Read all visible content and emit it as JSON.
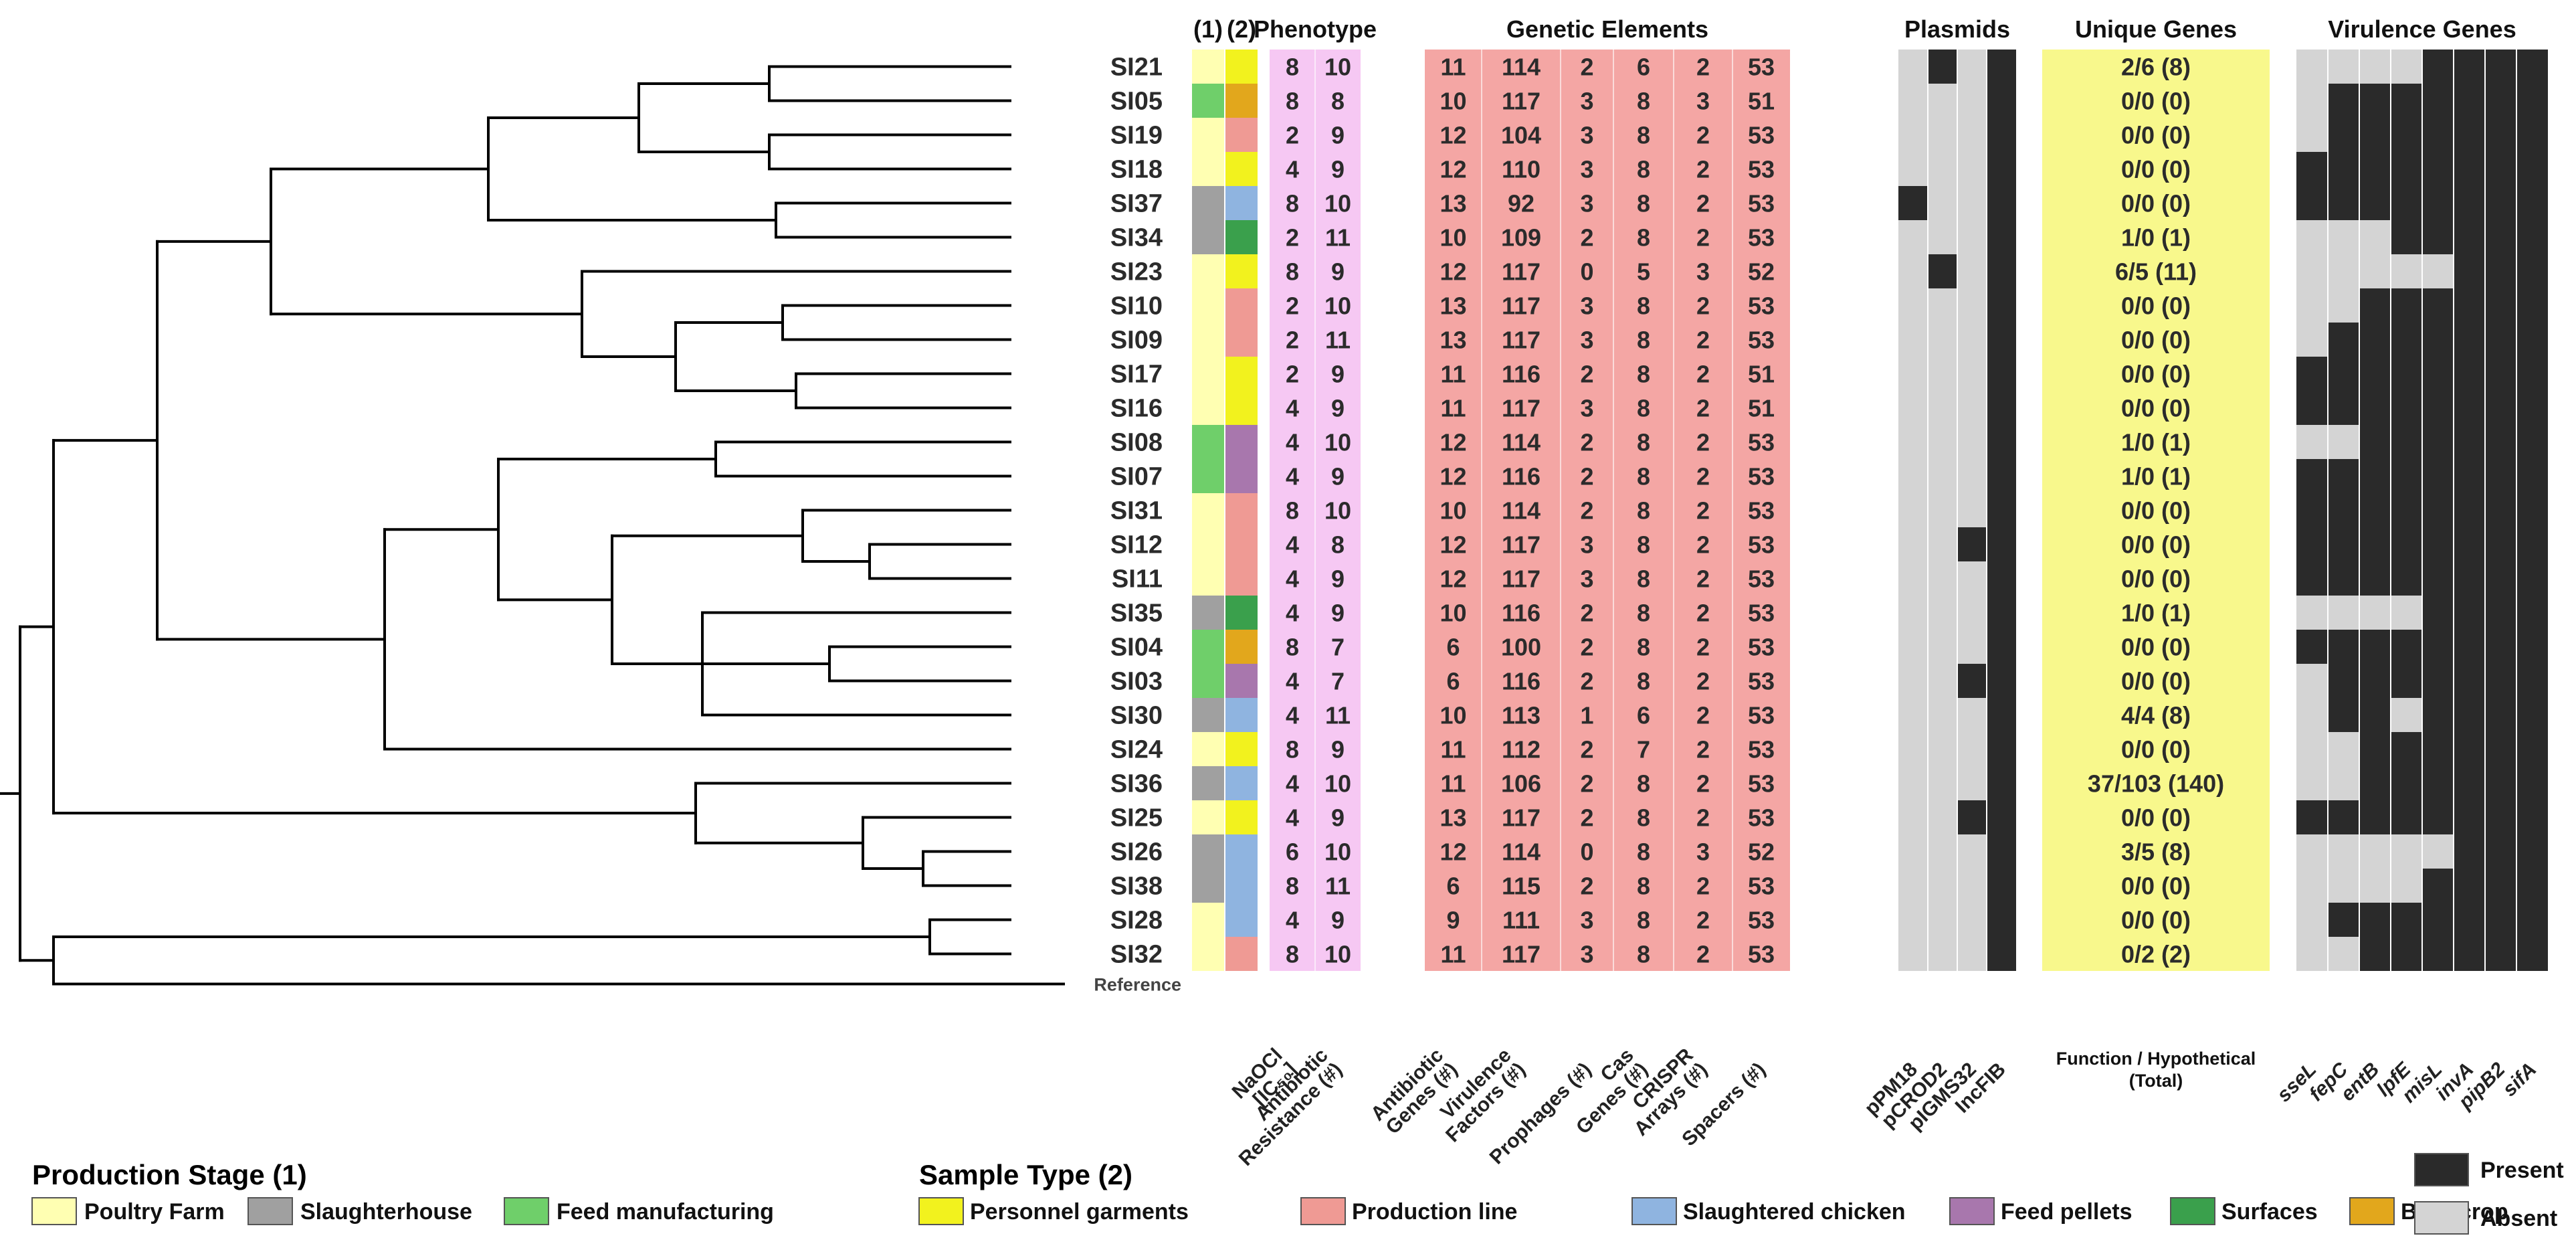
{
  "headers": {
    "stage": "(1)",
    "sample": "(2)",
    "phenotype": "Phenotype",
    "genetic": "Genetic Elements",
    "plasmids": "Plasmids",
    "unique": "Unique Genes",
    "virulence": "Virulence Genes"
  },
  "column_labels": {
    "phenotype": [
      [
        "NaOCl",
        "[IC₅₀]"
      ],
      [
        "Antibiotic",
        "Resistance (#)"
      ]
    ],
    "genetic": [
      [
        "Antibiotic",
        "Genes (#)"
      ],
      [
        "Virulence",
        "Factors (#)"
      ],
      [
        "Prophages (#)"
      ],
      [
        "Cas",
        "Genes (#)"
      ],
      [
        "CRISPR",
        "Arrays (#)"
      ],
      [
        "Spacers (#)"
      ]
    ],
    "plasmids": [
      "pPM18",
      "pCROD2",
      "pIGMS32",
      "IncFIB"
    ],
    "unique": [
      "Function / Hypothetical",
      "(Total)"
    ],
    "virulence": [
      "sseL",
      "fepC",
      "entB",
      "lpfE",
      "misL",
      "invA",
      "pipB2",
      "sifA"
    ]
  },
  "reference_label": "Reference",
  "colors": {
    "stage": {
      "farm": "#ffffb2",
      "slaughter": "#a0a0a0",
      "feed": "#6fcf6a"
    },
    "sample": {
      "garments": "#f2f21e",
      "line": "#ef9a94",
      "chicken": "#8fb4e0",
      "pellets": "#a877ad",
      "surfaces": "#3aa04c",
      "bran": "#e2a71c"
    },
    "phenotype_bg": "#f6c8f3",
    "genetic_bg": "#f4a6a4",
    "unique_bg": "#f8f88c",
    "present": "#2a2a2a",
    "absent": "#d4d4d4"
  },
  "rows": [
    {
      "id": "SI21",
      "stage": "farm",
      "sample": "garments",
      "phen": [
        "8",
        "10"
      ],
      "gen": [
        "11",
        "114",
        "2",
        "6",
        "2",
        "53"
      ],
      "plasmid": [
        0,
        1,
        0,
        1
      ],
      "unique": "2/6 (8)",
      "vir": [
        0,
        0,
        0,
        0,
        1,
        1,
        1,
        1
      ]
    },
    {
      "id": "SI05",
      "stage": "feed",
      "sample": "bran",
      "phen": [
        "8",
        "8"
      ],
      "gen": [
        "10",
        "117",
        "3",
        "8",
        "3",
        "51"
      ],
      "plasmid": [
        0,
        0,
        0,
        1
      ],
      "unique": "0/0 (0)",
      "vir": [
        0,
        1,
        1,
        1,
        1,
        1,
        1,
        1
      ]
    },
    {
      "id": "SI19",
      "stage": "farm",
      "sample": "line",
      "phen": [
        "2",
        "9"
      ],
      "gen": [
        "12",
        "104",
        "3",
        "8",
        "2",
        "53"
      ],
      "plasmid": [
        0,
        0,
        0,
        1
      ],
      "unique": "0/0 (0)",
      "vir": [
        0,
        1,
        1,
        1,
        1,
        1,
        1,
        1
      ]
    },
    {
      "id": "SI18",
      "stage": "farm",
      "sample": "garments",
      "phen": [
        "4",
        "9"
      ],
      "gen": [
        "12",
        "110",
        "3",
        "8",
        "2",
        "53"
      ],
      "plasmid": [
        0,
        0,
        0,
        1
      ],
      "unique": "0/0 (0)",
      "vir": [
        1,
        1,
        1,
        1,
        1,
        1,
        1,
        1
      ]
    },
    {
      "id": "SI37",
      "stage": "slaughter",
      "sample": "chicken",
      "phen": [
        "8",
        "10"
      ],
      "gen": [
        "13",
        "92",
        "3",
        "8",
        "2",
        "53"
      ],
      "plasmid": [
        1,
        0,
        0,
        1
      ],
      "unique": "0/0 (0)",
      "vir": [
        1,
        1,
        1,
        1,
        1,
        1,
        1,
        1
      ]
    },
    {
      "id": "SI34",
      "stage": "slaughter",
      "sample": "surfaces",
      "phen": [
        "2",
        "11"
      ],
      "gen": [
        "10",
        "109",
        "2",
        "8",
        "2",
        "53"
      ],
      "plasmid": [
        0,
        0,
        0,
        1
      ],
      "unique": "1/0 (1)",
      "vir": [
        0,
        0,
        0,
        1,
        1,
        1,
        1,
        1
      ]
    },
    {
      "id": "SI23",
      "stage": "farm",
      "sample": "garments",
      "phen": [
        "8",
        "9"
      ],
      "gen": [
        "12",
        "117",
        "0",
        "5",
        "3",
        "52"
      ],
      "plasmid": [
        0,
        1,
        0,
        1
      ],
      "unique": "6/5 (11)",
      "vir": [
        0,
        0,
        0,
        0,
        0,
        1,
        1,
        1
      ]
    },
    {
      "id": "SI10",
      "stage": "farm",
      "sample": "line",
      "phen": [
        "2",
        "10"
      ],
      "gen": [
        "13",
        "117",
        "3",
        "8",
        "2",
        "53"
      ],
      "plasmid": [
        0,
        0,
        0,
        1
      ],
      "unique": "0/0 (0)",
      "vir": [
        0,
        0,
        1,
        1,
        1,
        1,
        1,
        1
      ]
    },
    {
      "id": "SI09",
      "stage": "farm",
      "sample": "line",
      "phen": [
        "2",
        "11"
      ],
      "gen": [
        "13",
        "117",
        "3",
        "8",
        "2",
        "53"
      ],
      "plasmid": [
        0,
        0,
        0,
        1
      ],
      "unique": "0/0 (0)",
      "vir": [
        0,
        1,
        1,
        1,
        1,
        1,
        1,
        1
      ]
    },
    {
      "id": "SI17",
      "stage": "farm",
      "sample": "garments",
      "phen": [
        "2",
        "9"
      ],
      "gen": [
        "11",
        "116",
        "2",
        "8",
        "2",
        "51"
      ],
      "plasmid": [
        0,
        0,
        0,
        1
      ],
      "unique": "0/0 (0)",
      "vir": [
        1,
        1,
        1,
        1,
        1,
        1,
        1,
        1
      ]
    },
    {
      "id": "SI16",
      "stage": "farm",
      "sample": "garments",
      "phen": [
        "4",
        "9"
      ],
      "gen": [
        "11",
        "117",
        "3",
        "8",
        "2",
        "51"
      ],
      "plasmid": [
        0,
        0,
        0,
        1
      ],
      "unique": "0/0 (0)",
      "vir": [
        1,
        1,
        1,
        1,
        1,
        1,
        1,
        1
      ]
    },
    {
      "id": "SI08",
      "stage": "feed",
      "sample": "pellets",
      "phen": [
        "4",
        "10"
      ],
      "gen": [
        "12",
        "114",
        "2",
        "8",
        "2",
        "53"
      ],
      "plasmid": [
        0,
        0,
        0,
        1
      ],
      "unique": "1/0 (1)",
      "vir": [
        0,
        0,
        1,
        1,
        1,
        1,
        1,
        1
      ]
    },
    {
      "id": "SI07",
      "stage": "feed",
      "sample": "pellets",
      "phen": [
        "4",
        "9"
      ],
      "gen": [
        "12",
        "116",
        "2",
        "8",
        "2",
        "53"
      ],
      "plasmid": [
        0,
        0,
        0,
        1
      ],
      "unique": "1/0 (1)",
      "vir": [
        1,
        1,
        1,
        1,
        1,
        1,
        1,
        1
      ]
    },
    {
      "id": "SI31",
      "stage": "farm",
      "sample": "line",
      "phen": [
        "8",
        "10"
      ],
      "gen": [
        "10",
        "114",
        "2",
        "8",
        "2",
        "53"
      ],
      "plasmid": [
        0,
        0,
        0,
        1
      ],
      "unique": "0/0 (0)",
      "vir": [
        1,
        1,
        1,
        1,
        1,
        1,
        1,
        1
      ]
    },
    {
      "id": "SI12",
      "stage": "farm",
      "sample": "line",
      "phen": [
        "4",
        "8"
      ],
      "gen": [
        "12",
        "117",
        "3",
        "8",
        "2",
        "53"
      ],
      "plasmid": [
        0,
        0,
        1,
        1
      ],
      "unique": "0/0 (0)",
      "vir": [
        1,
        1,
        1,
        1,
        1,
        1,
        1,
        1
      ]
    },
    {
      "id": "SI11",
      "stage": "farm",
      "sample": "line",
      "phen": [
        "4",
        "9"
      ],
      "gen": [
        "12",
        "117",
        "3",
        "8",
        "2",
        "53"
      ],
      "plasmid": [
        0,
        0,
        0,
        1
      ],
      "unique": "0/0 (0)",
      "vir": [
        1,
        1,
        1,
        1,
        1,
        1,
        1,
        1
      ]
    },
    {
      "id": "SI35",
      "stage": "slaughter",
      "sample": "surfaces",
      "phen": [
        "4",
        "9"
      ],
      "gen": [
        "10",
        "116",
        "2",
        "8",
        "2",
        "53"
      ],
      "plasmid": [
        0,
        0,
        0,
        1
      ],
      "unique": "1/0 (1)",
      "vir": [
        0,
        0,
        0,
        0,
        1,
        1,
        1,
        1
      ]
    },
    {
      "id": "SI04",
      "stage": "feed",
      "sample": "bran",
      "phen": [
        "8",
        "7"
      ],
      "gen": [
        "6",
        "100",
        "2",
        "8",
        "2",
        "53"
      ],
      "plasmid": [
        0,
        0,
        0,
        1
      ],
      "unique": "0/0 (0)",
      "vir": [
        1,
        1,
        1,
        1,
        1,
        1,
        1,
        1
      ]
    },
    {
      "id": "SI03",
      "stage": "feed",
      "sample": "pellets",
      "phen": [
        "4",
        "7"
      ],
      "gen": [
        "6",
        "116",
        "2",
        "8",
        "2",
        "53"
      ],
      "plasmid": [
        0,
        0,
        1,
        1
      ],
      "unique": "0/0 (0)",
      "vir": [
        0,
        1,
        1,
        1,
        1,
        1,
        1,
        1
      ]
    },
    {
      "id": "SI30",
      "stage": "slaughter",
      "sample": "chicken",
      "phen": [
        "4",
        "11"
      ],
      "gen": [
        "10",
        "113",
        "1",
        "6",
        "2",
        "53"
      ],
      "plasmid": [
        0,
        0,
        0,
        1
      ],
      "unique": "4/4 (8)",
      "vir": [
        0,
        1,
        1,
        0,
        1,
        1,
        1,
        1
      ]
    },
    {
      "id": "SI24",
      "stage": "farm",
      "sample": "garments",
      "phen": [
        "8",
        "9"
      ],
      "gen": [
        "11",
        "112",
        "2",
        "7",
        "2",
        "53"
      ],
      "plasmid": [
        0,
        0,
        0,
        1
      ],
      "unique": "0/0 (0)",
      "vir": [
        0,
        0,
        1,
        1,
        1,
        1,
        1,
        1
      ]
    },
    {
      "id": "SI36",
      "stage": "slaughter",
      "sample": "chicken",
      "phen": [
        "4",
        "10"
      ],
      "gen": [
        "11",
        "106",
        "2",
        "8",
        "2",
        "53"
      ],
      "plasmid": [
        0,
        0,
        0,
        1
      ],
      "unique": "37/103 (140)",
      "vir": [
        0,
        0,
        1,
        1,
        1,
        1,
        1,
        1
      ]
    },
    {
      "id": "SI25",
      "stage": "farm",
      "sample": "garments",
      "phen": [
        "4",
        "9"
      ],
      "gen": [
        "13",
        "117",
        "2",
        "8",
        "2",
        "53"
      ],
      "plasmid": [
        0,
        0,
        1,
        1
      ],
      "unique": "0/0 (0)",
      "vir": [
        1,
        1,
        1,
        1,
        1,
        1,
        1,
        1
      ]
    },
    {
      "id": "SI26",
      "stage": "slaughter",
      "sample": "chicken",
      "phen": [
        "6",
        "10"
      ],
      "gen": [
        "12",
        "114",
        "0",
        "8",
        "3",
        "52"
      ],
      "plasmid": [
        0,
        0,
        0,
        1
      ],
      "unique": "3/5 (8)",
      "vir": [
        0,
        0,
        0,
        0,
        0,
        1,
        1,
        1
      ]
    },
    {
      "id": "SI38",
      "stage": "slaughter",
      "sample": "chicken",
      "phen": [
        "8",
        "11"
      ],
      "gen": [
        "6",
        "115",
        "2",
        "8",
        "2",
        "53"
      ],
      "plasmid": [
        0,
        0,
        0,
        1
      ],
      "unique": "0/0 (0)",
      "vir": [
        0,
        0,
        0,
        0,
        1,
        1,
        1,
        1
      ]
    },
    {
      "id": "SI28",
      "stage": "farm",
      "sample": "chicken",
      "phen": [
        "4",
        "9"
      ],
      "gen": [
        "9",
        "111",
        "3",
        "8",
        "2",
        "53"
      ],
      "plasmid": [
        0,
        0,
        0,
        1
      ],
      "unique": "0/0 (0)",
      "vir": [
        0,
        1,
        1,
        1,
        1,
        1,
        1,
        1
      ]
    },
    {
      "id": "SI32",
      "stage": "farm",
      "sample": "line",
      "phen": [
        "8",
        "10"
      ],
      "gen": [
        "11",
        "117",
        "3",
        "8",
        "2",
        "53"
      ],
      "plasmid": [
        0,
        0,
        0,
        1
      ],
      "unique": "0/2 (2)",
      "vir": [
        0,
        0,
        1,
        1,
        1,
        1,
        1,
        1
      ]
    }
  ],
  "legend": {
    "stage_title": "Production Stage (1)",
    "stage_items": [
      {
        "key": "farm",
        "label": "Poultry Farm"
      },
      {
        "key": "slaughter",
        "label": "Slaughterhouse"
      },
      {
        "key": "feed",
        "label": "Feed manufacturing"
      }
    ],
    "sample_title": "Sample Type (2)",
    "sample_items": [
      {
        "key": "garments",
        "label": "Personnel garments"
      },
      {
        "key": "line",
        "label": "Production line"
      },
      {
        "key": "chicken",
        "label": "Slaughtered chicken"
      },
      {
        "key": "pellets",
        "label": "Feed pellets"
      },
      {
        "key": "surfaces",
        "label": "Surfaces"
      },
      {
        "key": "bran",
        "label": "Bran crop"
      }
    ],
    "presence_items": [
      {
        "key": "present",
        "label": "Present"
      },
      {
        "key": "absent",
        "label": "Absent"
      }
    ]
  }
}
